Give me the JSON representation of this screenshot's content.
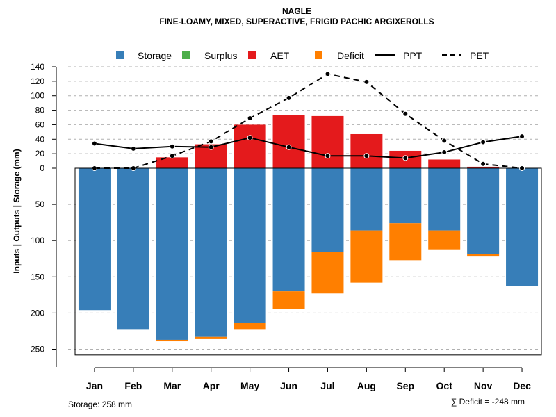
{
  "chart_data": {
    "type": "bar+line",
    "title": "NAGLE",
    "subtitle": "FINE-LOAMY, MIXED, SUPERACTIVE, FRIGID PACHIC ARGIXEROLLS",
    "ylabel": "Inputs | Outputs | Storage    (mm)",
    "categories": [
      "Jan",
      "Feb",
      "Mar",
      "Apr",
      "May",
      "Jun",
      "Jul",
      "Aug",
      "Sep",
      "Oct",
      "Nov",
      "Dec"
    ],
    "upper_ticks": [
      "140",
      "120",
      "100",
      "80",
      "60",
      "40",
      "20",
      "0"
    ],
    "lower_ticks": [
      "50",
      "100",
      "150",
      "200",
      "250"
    ],
    "upper_ylim": [
      0,
      140
    ],
    "lower_ylim": [
      0,
      258
    ],
    "legend": {
      "storage": "Storage",
      "surplus": "Surplus",
      "aet": "AET",
      "deficit": "Deficit",
      "ppt": "PPT",
      "pet": "PET"
    },
    "colors": {
      "storage": "#377EB8",
      "surplus": "#4DAF4A",
      "aet": "#E41A1C",
      "deficit": "#FF7F00"
    },
    "aet": [
      0,
      0,
      15,
      33,
      60,
      73,
      72,
      47,
      24,
      12,
      2,
      0
    ],
    "ppt": [
      34,
      27,
      30,
      29,
      42,
      29,
      17,
      17,
      14,
      22,
      36,
      44
    ],
    "pet": [
      0,
      0,
      17,
      37,
      69,
      97,
      130,
      119,
      75,
      38,
      6,
      0
    ],
    "storage": [
      196,
      223,
      237,
      233,
      214,
      170,
      116,
      86,
      76,
      86,
      119,
      163
    ],
    "deficit": [
      0,
      0,
      2,
      3,
      9,
      24,
      57,
      72,
      51,
      26,
      3,
      0
    ],
    "storage_total_text": "Storage: 258 mm",
    "deficit_total_text": "∑ Deficit = -248 mm"
  }
}
